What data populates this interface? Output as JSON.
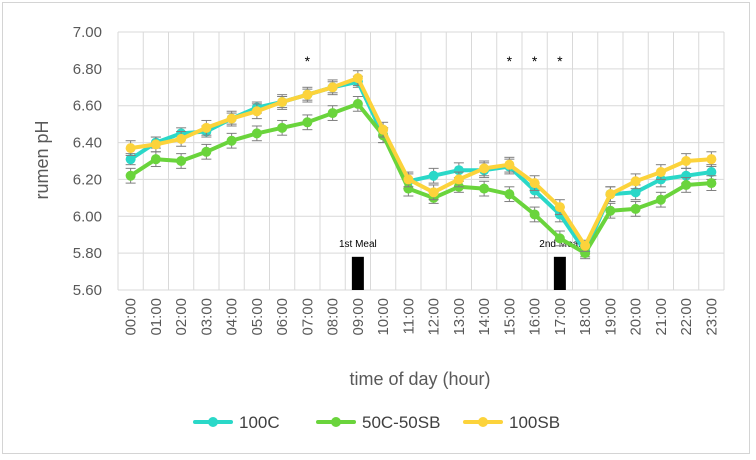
{
  "chart_data": {
    "type": "line",
    "title": "",
    "xlabel": "time of day (hour)",
    "ylabel": "rumen pH",
    "ylim": [
      5.6,
      7.0
    ],
    "yticks": [
      "5.60",
      "5.80",
      "6.00",
      "6.20",
      "6.40",
      "6.60",
      "6.80",
      "7.00"
    ],
    "categories": [
      "00:00",
      "01:00",
      "02:00",
      "03:00",
      "04:00",
      "05:00",
      "06:00",
      "07:00",
      "08:00",
      "09:00",
      "10:00",
      "11:00",
      "12:00",
      "13:00",
      "14:00",
      "15:00",
      "16:00",
      "17:00",
      "18:00",
      "19:00",
      "20:00",
      "21:00",
      "22:00",
      "23:00"
    ],
    "grid": true,
    "legend_position": "bottom",
    "series": [
      {
        "name": "100C",
        "color": "#2ad8c8",
        "values": [
          6.31,
          6.4,
          6.45,
          6.46,
          6.53,
          6.59,
          6.62,
          6.66,
          6.7,
          6.73,
          6.44,
          6.19,
          6.22,
          6.25,
          6.25,
          6.27,
          6.14,
          6.01,
          5.81,
          6.12,
          6.13,
          6.2,
          6.22,
          6.24
        ],
        "error": [
          0.03,
          0.03,
          0.03,
          0.03,
          0.03,
          0.03,
          0.03,
          0.03,
          0.03,
          0.03,
          0.04,
          0.04,
          0.04,
          0.04,
          0.04,
          0.04,
          0.04,
          0.04,
          0.03,
          0.04,
          0.04,
          0.04,
          0.04,
          0.04
        ]
      },
      {
        "name": "50C-50SB",
        "color": "#6ad43c",
        "values": [
          6.22,
          6.31,
          6.3,
          6.35,
          6.41,
          6.45,
          6.48,
          6.51,
          6.56,
          6.61,
          6.44,
          6.15,
          6.1,
          6.16,
          6.15,
          6.12,
          6.01,
          5.88,
          5.8,
          6.03,
          6.04,
          6.09,
          6.17,
          6.18
        ],
        "error": [
          0.04,
          0.04,
          0.04,
          0.04,
          0.04,
          0.04,
          0.04,
          0.04,
          0.04,
          0.04,
          0.04,
          0.04,
          0.03,
          0.03,
          0.04,
          0.04,
          0.04,
          0.04,
          0.03,
          0.04,
          0.04,
          0.04,
          0.04,
          0.04
        ]
      },
      {
        "name": "100SB",
        "color": "#fcd33b",
        "values": [
          6.37,
          6.39,
          6.42,
          6.48,
          6.53,
          6.57,
          6.62,
          6.66,
          6.7,
          6.75,
          6.47,
          6.2,
          6.13,
          6.2,
          6.26,
          6.28,
          6.18,
          6.05,
          5.84,
          6.12,
          6.19,
          6.24,
          6.3,
          6.31
        ],
        "error": [
          0.04,
          0.04,
          0.04,
          0.04,
          0.04,
          0.04,
          0.04,
          0.04,
          0.04,
          0.04,
          0.04,
          0.04,
          0.04,
          0.04,
          0.04,
          0.04,
          0.04,
          0.04,
          0.03,
          0.04,
          0.04,
          0.04,
          0.04,
          0.04
        ]
      }
    ],
    "significance_markers": [
      {
        "category": "07:00",
        "symbol": "*"
      },
      {
        "category": "15:00",
        "symbol": "*"
      },
      {
        "category": "16:00",
        "symbol": "*"
      },
      {
        "category": "17:00",
        "symbol": "*"
      }
    ],
    "meal_bars": [
      {
        "category": "09:00",
        "label": "1st Meal",
        "top_value": 5.78
      },
      {
        "category": "17:00",
        "label": "2nd Meal",
        "top_value": 5.78
      }
    ]
  }
}
